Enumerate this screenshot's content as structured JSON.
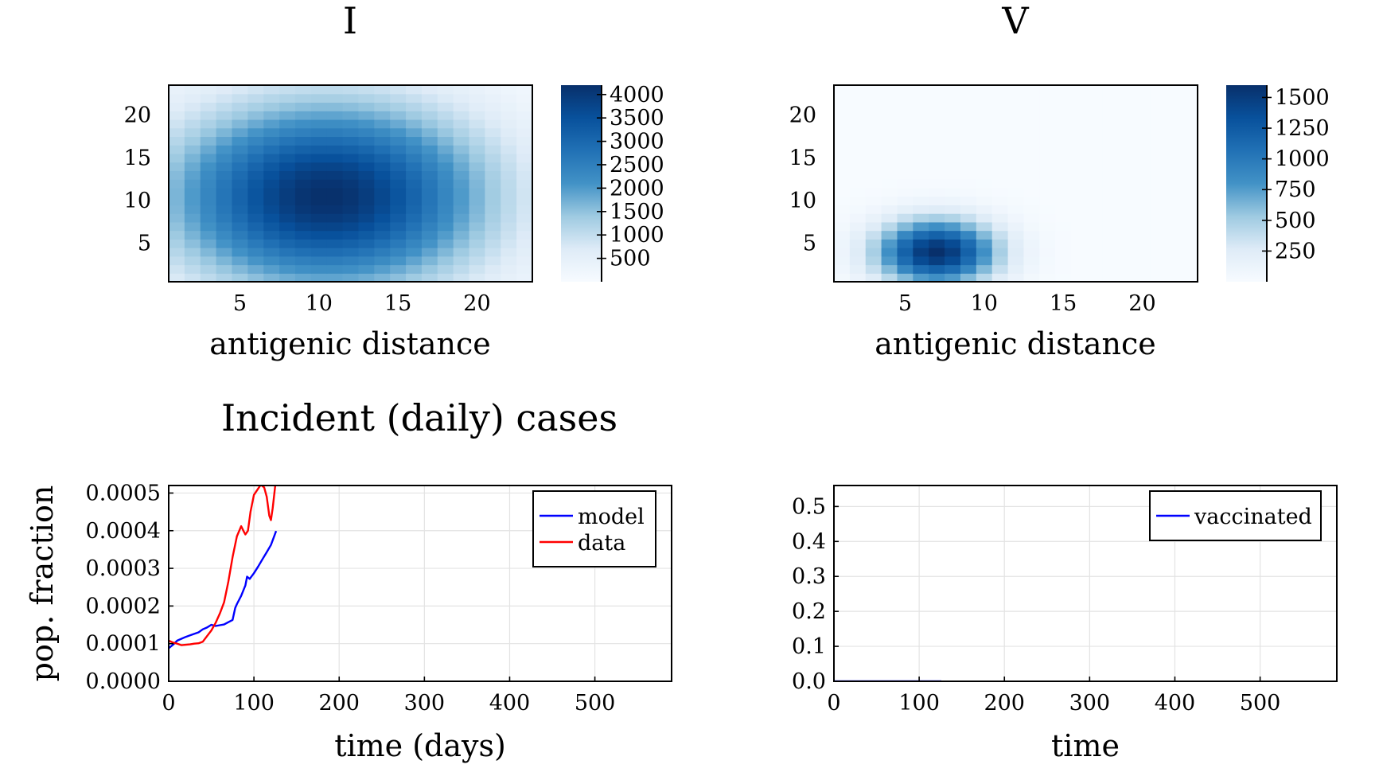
{
  "chart_data": [
    {
      "type": "heatmap",
      "title": "I",
      "xlabel": "antigenic distance",
      "ylabel": "",
      "grid_size": [
        23,
        23
      ],
      "value_model": {
        "kind": "gaussian",
        "peak": 4200,
        "cx": 10.5,
        "cy": 10.5,
        "sx": 7.0,
        "sy": 7.5
      },
      "color_range": [
        0,
        4200
      ],
      "xticks": [
        5,
        10,
        15,
        20
      ],
      "yticks": [
        5,
        10,
        15,
        20
      ],
      "colorbar_ticks": [
        500,
        1000,
        1500,
        2000,
        2500,
        3000,
        3500,
        4000
      ],
      "colormap": [
        "#f7fbff",
        "#deebf7",
        "#9ecae1",
        "#4292c6",
        "#2171b5",
        "#08519c",
        "#08306b"
      ]
    },
    {
      "type": "heatmap",
      "title": "V",
      "xlabel": "antigenic distance",
      "ylabel": "",
      "grid_size": [
        23,
        23
      ],
      "value_model": {
        "kind": "gaussian",
        "peak": 1600,
        "cx": 7.0,
        "cy": 4.0,
        "sx": 2.6,
        "sy": 2.6
      },
      "color_range": [
        0,
        1600
      ],
      "xticks": [
        5,
        10,
        15,
        20
      ],
      "yticks": [
        5,
        10,
        15,
        20
      ],
      "colorbar_ticks": [
        250,
        500,
        750,
        1000,
        1250,
        1500
      ],
      "colormap": [
        "#f7fbff",
        "#deebf7",
        "#9ecae1",
        "#4292c6",
        "#2171b5",
        "#08519c",
        "#08306b"
      ]
    },
    {
      "type": "line",
      "title": "Incident (daily) cases",
      "xlabel": "time (days)",
      "ylabel": "pop. fraction",
      "xlim": [
        0,
        590
      ],
      "ylim": [
        0,
        0.00052
      ],
      "xticks": [
        0,
        100,
        200,
        300,
        400,
        500
      ],
      "yticks": [
        {
          "value": 0.0,
          "label": "0.0000"
        },
        {
          "value": 0.0001,
          "label": "0.0001"
        },
        {
          "value": 0.0002,
          "label": "0.0002"
        },
        {
          "value": 0.0003,
          "label": "0.0003"
        },
        {
          "value": 0.0004,
          "label": "0.0004"
        },
        {
          "value": 0.0005,
          "label": "0.0005"
        }
      ],
      "grid": true,
      "legend_position": "top-right",
      "series": [
        {
          "name": "model",
          "color": "#0000ff",
          "x": [
            0,
            5,
            10,
            15,
            20,
            25,
            30,
            35,
            40,
            45,
            50,
            55,
            60,
            65,
            70,
            75,
            78,
            80,
            85,
            90,
            92,
            95,
            100,
            105,
            110,
            115,
            120,
            126
          ],
          "y": [
            8.8e-05,
            9.7e-05,
            0.000108,
            0.000113,
            0.000118,
            0.000122,
            0.000126,
            0.00013,
            0.000138,
            0.000143,
            0.00015,
            0.000147,
            0.000149,
            0.000151,
            0.000157,
            0.000163,
            0.000195,
            0.000205,
            0.000227,
            0.000255,
            0.000278,
            0.000272,
            0.000287,
            0.000305,
            0.000324,
            0.000343,
            0.000362,
            0.000399
          ]
        },
        {
          "name": "data",
          "color": "#ff0000",
          "x": [
            0,
            5,
            10,
            15,
            20,
            25,
            30,
            35,
            40,
            45,
            50,
            55,
            60,
            65,
            70,
            75,
            80,
            85,
            88,
            90,
            93,
            96,
            100,
            105,
            108,
            112,
            115,
            118,
            120,
            122,
            125
          ],
          "y": [
            0.000108,
            0.000103,
            0.0001,
            9.6e-05,
            9.7e-05,
            9.8e-05,
            0.0001,
            0.000101,
            0.000105,
            0.00012,
            0.000135,
            0.000155,
            0.00018,
            0.00021,
            0.000265,
            0.00033,
            0.000385,
            0.000412,
            0.000398,
            0.00039,
            0.0004,
            0.00045,
            0.000495,
            0.000512,
            0.000522,
            0.000515,
            0.00049,
            0.00044,
            0.000428,
            0.00046,
            0.00052
          ]
        }
      ]
    },
    {
      "type": "line",
      "title": "",
      "xlabel": "time",
      "ylabel": "",
      "xlim": [
        0,
        590
      ],
      "ylim": [
        0,
        0.56
      ],
      "xticks": [
        0,
        100,
        200,
        300,
        400,
        500
      ],
      "yticks": [
        {
          "value": 0.0,
          "label": "0.0"
        },
        {
          "value": 0.1,
          "label": "0.1"
        },
        {
          "value": 0.2,
          "label": "0.2"
        },
        {
          "value": 0.3,
          "label": "0.3"
        },
        {
          "value": 0.4,
          "label": "0.4"
        },
        {
          "value": 0.5,
          "label": "0.5"
        }
      ],
      "grid": true,
      "legend_position": "top-right",
      "series": [
        {
          "name": "vaccinated",
          "color": "#0000ff",
          "x": [
            0,
            20,
            40,
            60,
            80,
            100,
            126
          ],
          "y": [
            0,
            0,
            0,
            0,
            0,
            0,
            0
          ]
        }
      ]
    }
  ]
}
